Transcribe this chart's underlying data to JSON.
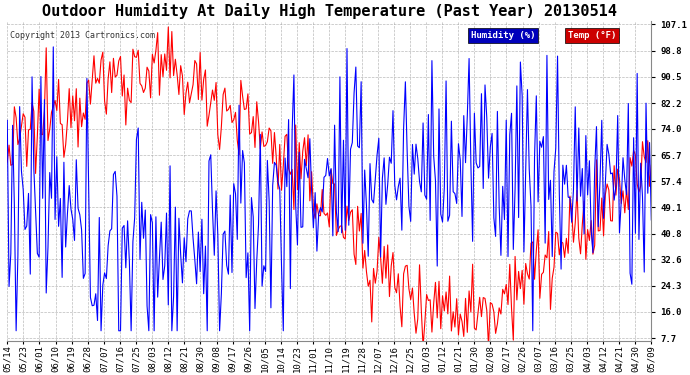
{
  "title": "Outdoor Humidity At Daily High Temperature (Past Year) 20130514",
  "copyright": "Copyright 2013 Cartronics.com",
  "legend_humidity": "Humidity (%)",
  "legend_temp": "Temp (°F)",
  "legend_humidity_bg": "#0000bb",
  "legend_temp_bg": "#cc0000",
  "bg_color": "#ffffff",
  "plot_bg_color": "#ffffff",
  "grid_color": "#aaaaaa",
  "humidity_color": "#0000ff",
  "temp_color": "#ff0000",
  "ylim_min": 7.7,
  "ylim_max": 107.1,
  "yticks": [
    107.1,
    98.8,
    90.5,
    82.2,
    74.0,
    65.7,
    57.4,
    49.1,
    40.8,
    32.6,
    24.3,
    16.0,
    7.7
  ],
  "x_labels": [
    "05/14",
    "05/23",
    "06/01",
    "06/10",
    "06/19",
    "06/28",
    "07/07",
    "07/16",
    "07/25",
    "08/03",
    "08/12",
    "08/21",
    "08/30",
    "09/08",
    "09/17",
    "09/26",
    "10/05",
    "10/14",
    "10/23",
    "11/01",
    "11/10",
    "11/19",
    "11/28",
    "12/07",
    "12/16",
    "12/25",
    "01/03",
    "01/12",
    "01/21",
    "01/30",
    "02/08",
    "02/17",
    "02/26",
    "03/07",
    "03/16",
    "03/25",
    "04/03",
    "04/12",
    "04/21",
    "04/30",
    "05/09"
  ],
  "title_fontsize": 11,
  "tick_fontsize": 6.5,
  "figwidth": 6.9,
  "figheight": 3.75,
  "dpi": 100
}
